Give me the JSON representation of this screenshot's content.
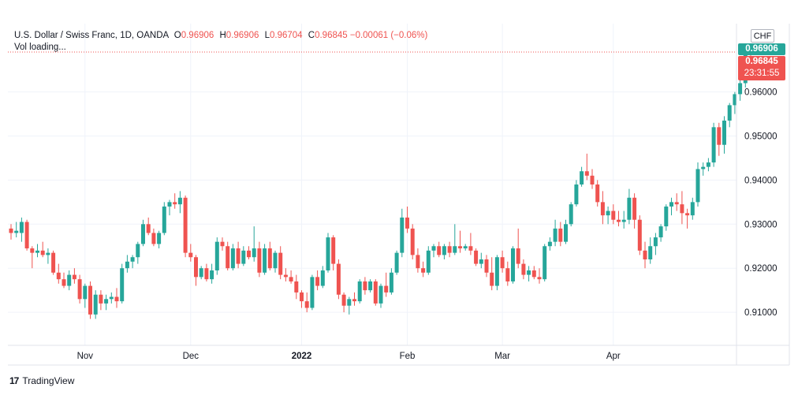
{
  "legend": {
    "symbol": "U.S. Dollar / Swiss Franc, 1D, OANDA",
    "o_key": "O",
    "o_val": "0.96906",
    "h_key": "H",
    "h_val": "0.96906",
    "l_key": "L",
    "l_val": "0.96704",
    "c_key": "C",
    "c_val": "0.96845",
    "change": "−0.00061 (−0.06%)",
    "vol": "Vol loading..."
  },
  "currency_button": "CHF",
  "price_tags": {
    "high": "0.96906",
    "last": "0.96845",
    "countdown": "23:31:55"
  },
  "brand": {
    "logo": "17",
    "name": "TradingView"
  },
  "colors": {
    "up": "#26a69a",
    "down": "#ef5350",
    "grid": "#f0f3fa",
    "axis_text": "#131722"
  },
  "chart_data": {
    "type": "candlestick",
    "y_axis": {
      "range": [
        0.9025,
        0.9755
      ],
      "ticks": [
        "0.91000",
        "0.92000",
        "0.93000",
        "0.94000",
        "0.95000",
        "0.96000"
      ],
      "side": "right"
    },
    "x_labels": [
      {
        "label": "Nov",
        "index": 14,
        "bold": false
      },
      {
        "label": "Dec",
        "index": 34,
        "bold": false
      },
      {
        "label": "2022",
        "index": 55,
        "bold": true
      },
      {
        "label": "Feb",
        "index": 75,
        "bold": false
      },
      {
        "label": "Mar",
        "index": 93,
        "bold": false
      },
      {
        "label": "Apr",
        "index": 114,
        "bold": false
      }
    ],
    "last_price_line": 0.96906,
    "candles": [
      [
        0.929,
        0.93,
        0.9265,
        0.928
      ],
      [
        0.928,
        0.9305,
        0.927,
        0.9285
      ],
      [
        0.928,
        0.9315,
        0.926,
        0.9305
      ],
      [
        0.9305,
        0.931,
        0.924,
        0.9245
      ],
      [
        0.9245,
        0.925,
        0.92,
        0.9235
      ],
      [
        0.9235,
        0.9255,
        0.9225,
        0.924
      ],
      [
        0.924,
        0.926,
        0.9225,
        0.923
      ],
      [
        0.923,
        0.9245,
        0.921,
        0.9235
      ],
      [
        0.9235,
        0.924,
        0.9185,
        0.919
      ],
      [
        0.919,
        0.921,
        0.9165,
        0.9175
      ],
      [
        0.9175,
        0.919,
        0.9155,
        0.916
      ],
      [
        0.916,
        0.9195,
        0.915,
        0.9185
      ],
      [
        0.9185,
        0.92,
        0.9165,
        0.9175
      ],
      [
        0.9175,
        0.9185,
        0.912,
        0.913
      ],
      [
        0.913,
        0.9165,
        0.911,
        0.916
      ],
      [
        0.916,
        0.917,
        0.9085,
        0.9095
      ],
      [
        0.9095,
        0.915,
        0.9085,
        0.914
      ],
      [
        0.914,
        0.915,
        0.9105,
        0.912
      ],
      [
        0.912,
        0.914,
        0.9105,
        0.913
      ],
      [
        0.913,
        0.9145,
        0.912,
        0.9135
      ],
      [
        0.9135,
        0.9155,
        0.911,
        0.9125
      ],
      [
        0.9125,
        0.921,
        0.912,
        0.92
      ],
      [
        0.92,
        0.923,
        0.919,
        0.9215
      ],
      [
        0.9215,
        0.923,
        0.92,
        0.9225
      ],
      [
        0.9225,
        0.926,
        0.921,
        0.9255
      ],
      [
        0.9255,
        0.931,
        0.925,
        0.93
      ],
      [
        0.93,
        0.9315,
        0.9275,
        0.928
      ],
      [
        0.928,
        0.929,
        0.925,
        0.9255
      ],
      [
        0.9255,
        0.9285,
        0.9245,
        0.928
      ],
      [
        0.928,
        0.935,
        0.9275,
        0.934
      ],
      [
        0.934,
        0.9355,
        0.932,
        0.935
      ],
      [
        0.935,
        0.937,
        0.9335,
        0.9345
      ],
      [
        0.9345,
        0.9375,
        0.9325,
        0.936
      ],
      [
        0.936,
        0.9365,
        0.9225,
        0.9235
      ],
      [
        0.9235,
        0.9255,
        0.9215,
        0.9225
      ],
      [
        0.9225,
        0.923,
        0.916,
        0.918
      ],
      [
        0.918,
        0.9205,
        0.9175,
        0.92
      ],
      [
        0.92,
        0.921,
        0.917,
        0.9175
      ],
      [
        0.9175,
        0.921,
        0.9165,
        0.9195
      ],
      [
        0.9195,
        0.927,
        0.9185,
        0.926
      ],
      [
        0.926,
        0.927,
        0.924,
        0.925
      ],
      [
        0.925,
        0.926,
        0.9195,
        0.92
      ],
      [
        0.92,
        0.9255,
        0.9195,
        0.9245
      ],
      [
        0.9245,
        0.926,
        0.92,
        0.921
      ],
      [
        0.921,
        0.925,
        0.9205,
        0.924
      ],
      [
        0.924,
        0.925,
        0.922,
        0.9225
      ],
      [
        0.9225,
        0.9295,
        0.9215,
        0.9245
      ],
      [
        0.9245,
        0.926,
        0.918,
        0.919
      ],
      [
        0.919,
        0.9255,
        0.9185,
        0.9245
      ],
      [
        0.9245,
        0.926,
        0.9195,
        0.92
      ],
      [
        0.92,
        0.924,
        0.919,
        0.9235
      ],
      [
        0.9235,
        0.925,
        0.9175,
        0.9185
      ],
      [
        0.9185,
        0.92,
        0.917,
        0.918
      ],
      [
        0.918,
        0.9195,
        0.9165,
        0.917
      ],
      [
        0.917,
        0.9185,
        0.913,
        0.9145
      ],
      [
        0.9145,
        0.915,
        0.911,
        0.9125
      ],
      [
        0.9125,
        0.9145,
        0.91,
        0.911
      ],
      [
        0.911,
        0.9185,
        0.9105,
        0.918
      ],
      [
        0.918,
        0.9195,
        0.915,
        0.916
      ],
      [
        0.916,
        0.9205,
        0.9155,
        0.9195
      ],
      [
        0.9195,
        0.928,
        0.919,
        0.927
      ],
      [
        0.927,
        0.9275,
        0.9195,
        0.921
      ],
      [
        0.921,
        0.922,
        0.913,
        0.914
      ],
      [
        0.914,
        0.9145,
        0.91,
        0.9115
      ],
      [
        0.9115,
        0.9135,
        0.9095,
        0.913
      ],
      [
        0.913,
        0.9145,
        0.9115,
        0.9125
      ],
      [
        0.9125,
        0.9175,
        0.912,
        0.917
      ],
      [
        0.917,
        0.918,
        0.914,
        0.915
      ],
      [
        0.915,
        0.9175,
        0.9145,
        0.917
      ],
      [
        0.917,
        0.9175,
        0.9115,
        0.912
      ],
      [
        0.912,
        0.9165,
        0.911,
        0.916
      ],
      [
        0.916,
        0.919,
        0.9135,
        0.9145
      ],
      [
        0.9145,
        0.92,
        0.914,
        0.919
      ],
      [
        0.919,
        0.924,
        0.9185,
        0.9235
      ],
      [
        0.9235,
        0.9335,
        0.9225,
        0.9315
      ],
      [
        0.9315,
        0.934,
        0.928,
        0.929
      ],
      [
        0.929,
        0.93,
        0.922,
        0.923
      ],
      [
        0.923,
        0.9245,
        0.919,
        0.92
      ],
      [
        0.92,
        0.9215,
        0.918,
        0.919
      ],
      [
        0.919,
        0.925,
        0.9185,
        0.924
      ],
      [
        0.924,
        0.9255,
        0.9225,
        0.925
      ],
      [
        0.925,
        0.926,
        0.9225,
        0.923
      ],
      [
        0.923,
        0.9255,
        0.922,
        0.925
      ],
      [
        0.925,
        0.926,
        0.9225,
        0.9235
      ],
      [
        0.9235,
        0.93,
        0.923,
        0.925
      ],
      [
        0.925,
        0.9285,
        0.9235,
        0.9245
      ],
      [
        0.9245,
        0.9255,
        0.924,
        0.925
      ],
      [
        0.925,
        0.928,
        0.923,
        0.924
      ],
      [
        0.924,
        0.9245,
        0.9205,
        0.921
      ],
      [
        0.921,
        0.9235,
        0.92,
        0.922
      ],
      [
        0.922,
        0.923,
        0.918,
        0.919
      ],
      [
        0.919,
        0.9225,
        0.915,
        0.916
      ],
      [
        0.916,
        0.923,
        0.915,
        0.9225
      ],
      [
        0.9225,
        0.924,
        0.919,
        0.92
      ],
      [
        0.92,
        0.9215,
        0.916,
        0.917
      ],
      [
        0.917,
        0.925,
        0.9165,
        0.9245
      ],
      [
        0.9245,
        0.929,
        0.92,
        0.921
      ],
      [
        0.921,
        0.922,
        0.9175,
        0.9185
      ],
      [
        0.9185,
        0.9205,
        0.917,
        0.9195
      ],
      [
        0.9195,
        0.9205,
        0.9175,
        0.918
      ],
      [
        0.918,
        0.92,
        0.9165,
        0.9175
      ],
      [
        0.9175,
        0.9255,
        0.917,
        0.925
      ],
      [
        0.925,
        0.927,
        0.924,
        0.926
      ],
      [
        0.926,
        0.931,
        0.925,
        0.929
      ],
      [
        0.929,
        0.9305,
        0.925,
        0.926
      ],
      [
        0.926,
        0.931,
        0.9255,
        0.93
      ],
      [
        0.93,
        0.935,
        0.9295,
        0.9345
      ],
      [
        0.9345,
        0.94,
        0.934,
        0.939
      ],
      [
        0.939,
        0.943,
        0.9385,
        0.942
      ],
      [
        0.942,
        0.946,
        0.94,
        0.941
      ],
      [
        0.941,
        0.9425,
        0.938,
        0.939
      ],
      [
        0.939,
        0.94,
        0.934,
        0.935
      ],
      [
        0.935,
        0.9375,
        0.93,
        0.932
      ],
      [
        0.932,
        0.934,
        0.93,
        0.933
      ],
      [
        0.933,
        0.9345,
        0.93,
        0.931
      ],
      [
        0.931,
        0.933,
        0.9295,
        0.9305
      ],
      [
        0.9305,
        0.933,
        0.929,
        0.931
      ],
      [
        0.931,
        0.938,
        0.93,
        0.936
      ],
      [
        0.936,
        0.937,
        0.929,
        0.931
      ],
      [
        0.931,
        0.932,
        0.923,
        0.924
      ],
      [
        0.924,
        0.926,
        0.92,
        0.922
      ],
      [
        0.922,
        0.927,
        0.921,
        0.925
      ],
      [
        0.925,
        0.928,
        0.923,
        0.927
      ],
      [
        0.927,
        0.93,
        0.926,
        0.9295
      ],
      [
        0.9295,
        0.9345,
        0.9285,
        0.934
      ],
      [
        0.934,
        0.936,
        0.932,
        0.935
      ],
      [
        0.935,
        0.937,
        0.933,
        0.9345
      ],
      [
        0.9345,
        0.9375,
        0.93,
        0.9325
      ],
      [
        0.9325,
        0.9335,
        0.929,
        0.932
      ],
      [
        0.932,
        0.936,
        0.931,
        0.935
      ],
      [
        0.935,
        0.944,
        0.934,
        0.9425
      ],
      [
        0.9425,
        0.944,
        0.941,
        0.943
      ],
      [
        0.943,
        0.945,
        0.942,
        0.944
      ],
      [
        0.944,
        0.953,
        0.943,
        0.952
      ],
      [
        0.952,
        0.953,
        0.9455,
        0.948
      ],
      [
        0.948,
        0.9545,
        0.946,
        0.9535
      ],
      [
        0.9535,
        0.9575,
        0.952,
        0.957
      ],
      [
        0.957,
        0.96,
        0.955,
        0.9595
      ],
      [
        0.9595,
        0.963,
        0.958,
        0.962
      ],
      [
        0.962,
        0.9695,
        0.961,
        0.969
      ],
      [
        0.96906,
        0.96906,
        0.96704,
        0.96845
      ]
    ]
  }
}
